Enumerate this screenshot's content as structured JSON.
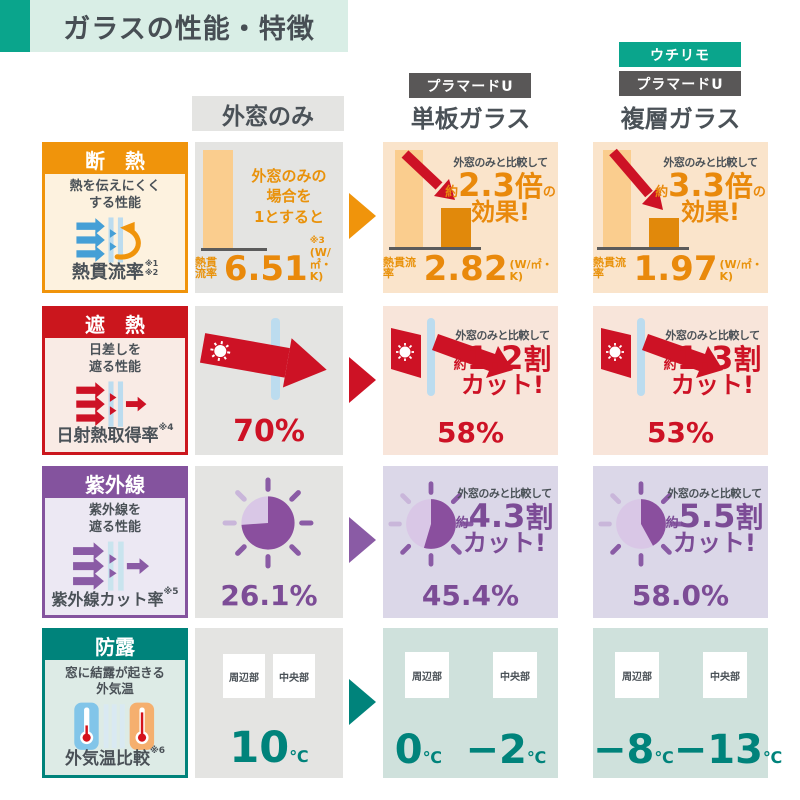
{
  "title": "ガラスの性能・特徴",
  "compare_note": "外窓のみと比較して",
  "approx": "約",
  "columns": {
    "outer": "外窓のみ",
    "single_badge": "プラマードU",
    "single_name": "単板ガラス",
    "double_badge_top": "ウチリモ",
    "double_badge": "プラマードU",
    "double_name": "複層ガラス"
  },
  "insulation": {
    "title": "断　熱",
    "desc1": "熱を伝えにくく",
    "desc2": "する性能",
    "metric": "熱貫流率",
    "note1": "※1",
    "note2": "※2",
    "unit": "(W/㎡・K)",
    "outer": {
      "cap1": "外窓のみの",
      "cap2": "場合を",
      "cap3": "1とすると",
      "value": "6.51",
      "note": "※3"
    },
    "single": {
      "big": "2.3",
      "mid": "倍",
      "tail": "の",
      "line2": "効果!",
      "value": "2.82"
    },
    "double": {
      "big": "3.3",
      "mid": "倍",
      "tail": "の",
      "line2": "効果!",
      "value": "1.97"
    }
  },
  "shading": {
    "title": "遮　熱",
    "desc1": "日差しを",
    "desc2": "遮る性能",
    "metric": "日射熱取得率",
    "note": "※4",
    "outer": {
      "value": "70%"
    },
    "single": {
      "big": "1.2",
      "mid": "割",
      "line2": "カット!",
      "value": "58%"
    },
    "double": {
      "big": "1.3",
      "mid": "割",
      "line2": "カット!",
      "value": "53%"
    }
  },
  "uv": {
    "title": "紫外線",
    "desc1": "紫外線を",
    "desc2": "遮る性能",
    "metric": "紫外線カット率",
    "note": "※5",
    "outer": {
      "value": "26.1%"
    },
    "single": {
      "big": "4.3",
      "mid": "割",
      "line2": "カット!",
      "value": "45.4%"
    },
    "double": {
      "big": "5.5",
      "mid": "割",
      "line2": "カット!",
      "value": "58.0%"
    }
  },
  "condensation": {
    "title": "防露",
    "desc1": "窓に結露が起きる",
    "desc2": "外気温",
    "metric": "外気温比較",
    "note": "※6",
    "label_edge": "周辺部",
    "label_center": "中央部",
    "unit": "℃",
    "outer": {
      "value": "10"
    },
    "single": {
      "edge": "0",
      "center": "−2"
    },
    "double": {
      "edge": "−8",
      "center": "−13"
    }
  },
  "colors": {
    "accent_teal": "#0AA58C",
    "orange": "#F0940B",
    "red": "#CD1225",
    "purple": "#84539E",
    "teal": "#00837B",
    "badge_gray": "#595757"
  }
}
